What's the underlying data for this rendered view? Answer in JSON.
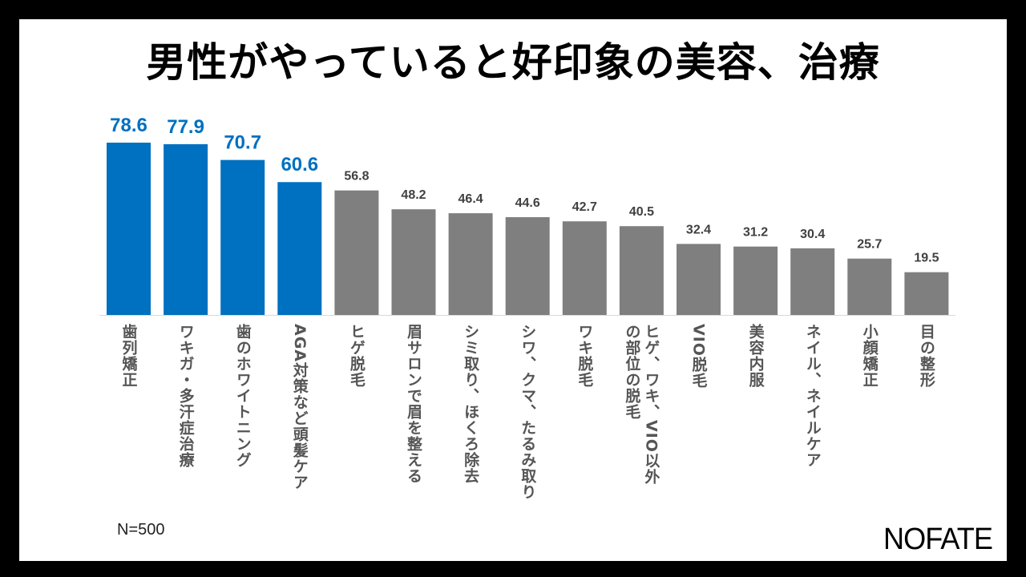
{
  "chart_data": {
    "type": "bar",
    "title": "男性がやっていると好印象の美容、治療",
    "categories": [
      "歯列矯正",
      "ワキガ・多汗症治療",
      "歯のホワイトニング",
      "AGA対策など頭髪ケア",
      "ヒゲ脱毛",
      "眉サロンで眉を整える",
      "シミ取り、ほくろ除去",
      "シワ、クマ、たるみ取り",
      "ワキ脱毛",
      "ヒゲ、ワキ、VIO以外の部位の脱毛",
      "VIO脱毛",
      "美容内服",
      "ネイル、ネイルケア",
      "小顔矯正",
      "目の整形"
    ],
    "values": [
      78.6,
      77.9,
      70.7,
      60.6,
      56.8,
      48.2,
      46.4,
      44.6,
      42.7,
      40.5,
      32.4,
      31.2,
      30.4,
      25.7,
      19.5
    ],
    "value_labels": [
      "78.6",
      "77.9",
      "70.7",
      "60.6",
      "56.8",
      "48.2",
      "46.4",
      "44.6",
      "42.7",
      "40.5",
      "32.4",
      "31.2",
      "30.4",
      "25.7",
      "19.5"
    ],
    "highlight_count": 4,
    "colors": {
      "highlight": "#0070c0",
      "default": "#7f7f7f",
      "highlight_label": "#0070c0",
      "default_label": "#404040"
    },
    "xlabel": "",
    "ylabel": "",
    "grid": false,
    "legend": "none",
    "note": "N=500"
  },
  "logo": "NOFATE"
}
